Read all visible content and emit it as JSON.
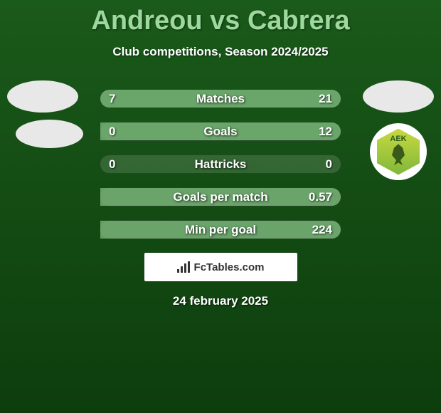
{
  "title": "Andreou vs Cabrera",
  "subtitle": "Club competitions, Season 2024/2025",
  "colors": {
    "bg_top": "#1a5a1a",
    "bg_bottom": "#0d3d0d",
    "title_color": "#9ed89e",
    "text_color": "#ffffff",
    "bar_bg": "rgba(100,140,100,0.4)",
    "bar_fill": "rgba(120,180,120,0.8)",
    "branding_bg": "#ffffff",
    "branding_text": "#333333"
  },
  "club_badge": {
    "text": "AEK",
    "colors": {
      "gradient_top": "#c9d840",
      "gradient_bottom": "#7fb83a",
      "text": "#2a5a1a",
      "eagle": "#3a5a1a"
    }
  },
  "stats": [
    {
      "label": "Matches",
      "left_value": "7",
      "right_value": "21",
      "left_pct": 25,
      "right_pct": 75
    },
    {
      "label": "Goals",
      "left_value": "0",
      "right_value": "12",
      "left_pct": 0,
      "right_pct": 100
    },
    {
      "label": "Hattricks",
      "left_value": "0",
      "right_value": "0",
      "left_pct": 0,
      "right_pct": 0
    },
    {
      "label": "Goals per match",
      "left_value": "",
      "right_value": "0.57",
      "left_pct": 0,
      "right_pct": 100
    },
    {
      "label": "Min per goal",
      "left_value": "",
      "right_value": "224",
      "left_pct": 0,
      "right_pct": 100
    }
  ],
  "branding": "FcTables.com",
  "date": "24 february 2025"
}
